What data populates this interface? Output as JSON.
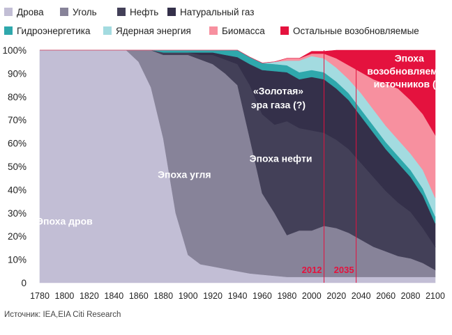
{
  "chart_data": {
    "type": "area",
    "stacked": true,
    "normalized": true,
    "legend": [
      {
        "name": "Дрова",
        "color": "#c2bed5"
      },
      {
        "name": "Уголь",
        "color": "#878399"
      },
      {
        "name": "Нефть",
        "color": "#434058"
      },
      {
        "name": "Натуральный газ",
        "color": "#34304a"
      },
      {
        "name": "Гидроэнергетика",
        "color": "#2fa8ac"
      },
      {
        "name": "Ядерная энергия",
        "color": "#a3dbe0"
      },
      {
        "name": "Биомасса",
        "color": "#f7909f"
      },
      {
        "name": "Остальные возобновляемые",
        "color": "#e4123e"
      }
    ],
    "legend_placement": "top",
    "x": [
      1780,
      1850,
      1860,
      1870,
      1880,
      1890,
      1900,
      1910,
      1920,
      1930,
      1940,
      1950,
      1960,
      1970,
      1980,
      1990,
      2000,
      2010,
      2020,
      2030,
      2040,
      2050,
      2060,
      2070,
      2080,
      2090,
      2100
    ],
    "series": [
      {
        "name": "Дрова",
        "values": [
          100,
          100,
          95,
          84,
          62,
          30,
          12,
          8,
          7,
          6,
          5,
          4,
          3.5,
          3,
          2.5,
          2.5,
          2.5,
          2.5,
          2.5,
          2.5,
          2.5,
          2.5,
          2.5,
          2.5,
          2.5,
          2.5,
          2.5
        ]
      },
      {
        "name": "Уголь",
        "values": [
          0,
          0,
          5,
          16,
          36,
          68,
          86,
          88,
          87,
          84,
          80,
          58,
          35,
          27,
          18,
          20,
          20,
          22,
          21,
          19,
          16,
          13,
          11,
          9,
          8,
          6,
          3
        ]
      },
      {
        "name": "Нефть",
        "values": [
          0,
          0,
          0,
          0,
          1,
          1,
          1,
          2,
          4,
          6,
          9,
          23,
          34,
          38,
          49,
          44,
          43,
          40,
          38,
          36,
          33,
          30,
          26,
          23,
          20,
          15,
          10
        ]
      },
      {
        "name": "Натуральный газ",
        "values": [
          0,
          0,
          0,
          0,
          0,
          0,
          0,
          1,
          1,
          2,
          3,
          9,
          19,
          23,
          21,
          21,
          23,
          23,
          22,
          21,
          20,
          19,
          18,
          17,
          15,
          14,
          10
        ]
      },
      {
        "name": "Гидроэнергетика",
        "values": [
          0,
          0,
          0,
          0,
          1,
          1,
          1,
          1,
          1,
          2,
          3,
          3,
          3,
          3,
          3,
          3,
          3,
          3,
          3,
          3,
          3,
          3,
          3,
          3,
          3,
          3,
          3
        ]
      },
      {
        "name": "Ядерная энергия",
        "values": [
          0,
          0,
          0,
          0,
          0,
          0,
          0,
          0,
          0,
          0,
          0,
          0,
          0,
          1,
          2,
          5,
          6,
          6,
          6,
          6,
          7,
          7,
          7,
          7,
          7,
          8,
          8
        ]
      },
      {
        "name": "Биомасса",
        "values": [
          0,
          0,
          0,
          0,
          0,
          0,
          0,
          0,
          0,
          0,
          0,
          0,
          0,
          0,
          1,
          1,
          1,
          2,
          4,
          6,
          9,
          13,
          18,
          22,
          23,
          24,
          27
        ]
      },
      {
        "name": "Остальные возобновляемые",
        "values": [
          0,
          0,
          0,
          0,
          0,
          0,
          0,
          0,
          0,
          0,
          0,
          0,
          0,
          0,
          0,
          0,
          1,
          1,
          3.5,
          6.5,
          9.5,
          12.5,
          14.5,
          16.5,
          21.5,
          27.5,
          36.5
        ]
      }
    ],
    "xlim": [
      1780,
      2100
    ],
    "ylim": [
      0,
      100
    ],
    "x_ticks": [
      "1780",
      "1800",
      "1820",
      "1840",
      "1860",
      "1880",
      "1900",
      "1920",
      "1940",
      "1960",
      "1980",
      "2000",
      "2020",
      "2040",
      "2060",
      "2080",
      "2100"
    ],
    "y_ticks": [
      "0",
      "10%",
      "20%",
      "30%",
      "40%",
      "50%",
      "60%",
      "70%",
      "80%",
      "90%",
      "100%"
    ],
    "grid": false,
    "annotations": [
      {
        "text": "Эпоха дров",
        "x": 1800,
        "y": 25,
        "color": "#ffffff"
      },
      {
        "text": "Эпоха угля",
        "x": 1897,
        "y": 45,
        "color": "#ffffff"
      },
      {
        "text": "Эпоха нефти",
        "x": 1975,
        "y": 52,
        "color": "#ffffff"
      },
      {
        "text": "«Золотая»",
        "x": 1973,
        "y": 81,
        "color": "#ffffff"
      },
      {
        "text": "эра газа (?)",
        "x": 1973,
        "y": 75,
        "color": "#ffffff"
      },
      {
        "text": "Эпоха",
        "x": 2079,
        "y": 95,
        "color": "#ffffff"
      },
      {
        "text": "возобновляемых",
        "x": 2079,
        "y": 89.5,
        "color": "#ffffff"
      },
      {
        "text": "источников (?)",
        "x": 2079,
        "y": 84,
        "color": "#ffffff"
      }
    ],
    "reference_lines": [
      {
        "x": 2010,
        "label": "2012",
        "color": "#e4123e"
      },
      {
        "x": 2036,
        "label": "2035",
        "color": "#e4123e"
      }
    ]
  },
  "source_text": "Источник: IEA,EIA Citi Research"
}
